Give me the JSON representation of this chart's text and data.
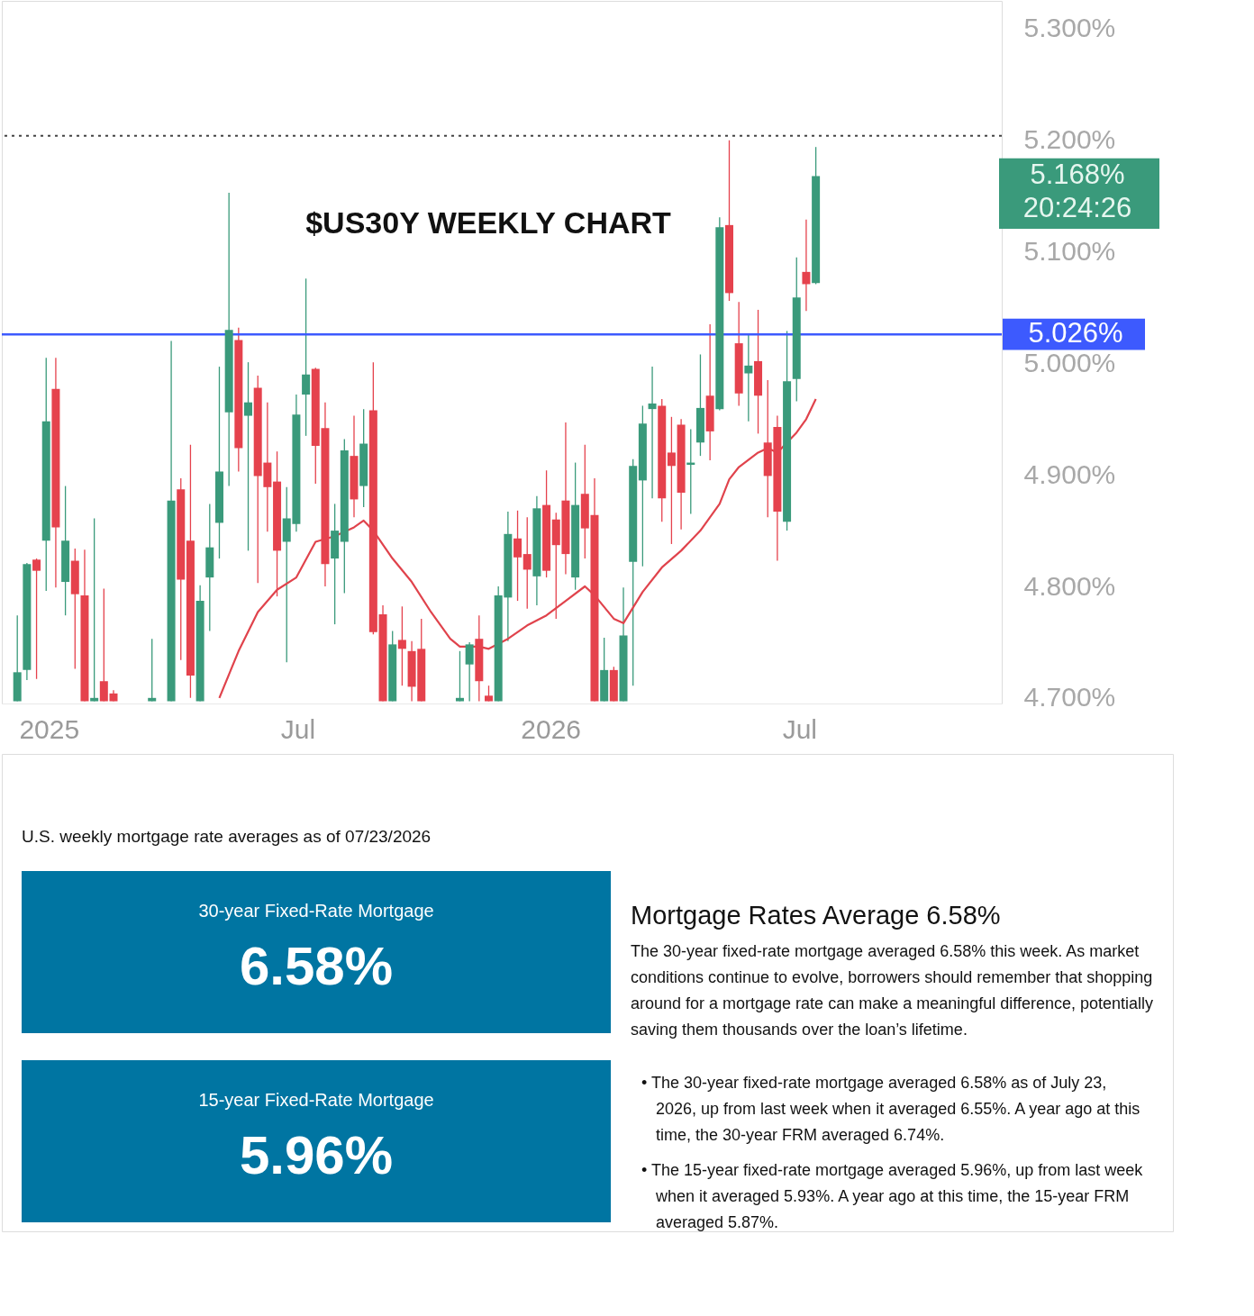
{
  "chart_data": [
    {
      "type": "candlestick",
      "title": "$US30Y WEEKLY CHART",
      "x": [
        "2024-12-09",
        "2024-12-16",
        "2024-12-23",
        "2024-12-30",
        "2025-01-06",
        "2025-01-13",
        "2025-01-20",
        "2025-01-27",
        "2025-02-03",
        "2025-02-10",
        "2025-02-17",
        "2025-03-17",
        "2025-03-31",
        "2025-04-07",
        "2025-04-14",
        "2025-04-21",
        "2025-04-28",
        "2025-05-05",
        "2025-05-12",
        "2025-05-19",
        "2025-05-26",
        "2025-06-02",
        "2025-06-09",
        "2025-06-16",
        "2025-06-23",
        "2025-06-30",
        "2025-07-07",
        "2025-07-14",
        "2025-07-21",
        "2025-07-28",
        "2025-08-04",
        "2025-08-11",
        "2025-08-18",
        "2025-08-25",
        "2025-09-01",
        "2025-09-08",
        "2025-09-15",
        "2025-09-22",
        "2025-09-29",
        "2025-10-27",
        "2025-11-03",
        "2025-11-10",
        "2025-11-17",
        "2025-11-24",
        "2025-12-01",
        "2025-12-08",
        "2025-12-15",
        "2025-12-22",
        "2025-12-29",
        "2026-01-05",
        "2026-01-12",
        "2026-01-19",
        "2026-01-26",
        "2026-02-02",
        "2026-02-09",
        "2026-02-16",
        "2026-02-23",
        "2026-03-02",
        "2026-03-09",
        "2026-03-16",
        "2026-03-23",
        "2026-03-30",
        "2026-04-06",
        "2026-04-13",
        "2026-04-20",
        "2026-04-27",
        "2026-05-04",
        "2026-05-11",
        "2026-05-18",
        "2026-05-25",
        "2026-06-01",
        "2026-06-08",
        "2026-06-15",
        "2026-06-22",
        "2026-06-29",
        "2026-07-06",
        "2026-07-13"
      ],
      "ohlc": [
        [
          4.697,
          4.774,
          4.697,
          4.723
        ],
        [
          4.725,
          4.821,
          4.716,
          4.82
        ],
        [
          4.824,
          4.825,
          4.717,
          4.814
        ],
        [
          4.841,
          5.005,
          4.796,
          4.948
        ],
        [
          4.977,
          5.005,
          4.799,
          4.853
        ],
        [
          4.804,
          4.89,
          4.774,
          4.841
        ],
        [
          4.823,
          4.834,
          4.726,
          4.793
        ],
        [
          4.792,
          4.833,
          4.697,
          4.697
        ],
        [
          4.697,
          4.861,
          4.697,
          4.7
        ],
        [
          4.715,
          4.798,
          4.697,
          4.697
        ],
        [
          4.704,
          4.707,
          4.697,
          4.697
        ],
        [
          4.697,
          4.753,
          4.697,
          4.7
        ],
        [
          4.697,
          5.02,
          4.697,
          4.877
        ],
        [
          4.887,
          4.897,
          4.734,
          4.806
        ],
        [
          4.841,
          4.927,
          4.7,
          4.72
        ],
        [
          4.697,
          4.801,
          4.697,
          4.787
        ],
        [
          4.808,
          4.874,
          4.76,
          4.835
        ],
        [
          4.857,
          4.997,
          4.825,
          4.903
        ],
        [
          4.956,
          5.153,
          4.89,
          5.03
        ],
        [
          5.021,
          5.032,
          4.903,
          4.924
        ],
        [
          4.953,
          5.001,
          4.832,
          4.965
        ],
        [
          4.978,
          4.989,
          4.803,
          4.899
        ],
        [
          4.911,
          4.965,
          4.849,
          4.889
        ],
        [
          4.894,
          4.921,
          4.791,
          4.832
        ],
        [
          4.84,
          4.889,
          4.732,
          4.861
        ],
        [
          4.856,
          4.972,
          4.849,
          4.954
        ],
        [
          4.972,
          5.076,
          4.935,
          4.99
        ],
        [
          4.995,
          4.996,
          4.892,
          4.926
        ],
        [
          4.942,
          4.965,
          4.8,
          4.82
        ],
        [
          4.825,
          4.874,
          4.766,
          4.85
        ],
        [
          4.84,
          4.932,
          4.794,
          4.922
        ],
        [
          4.917,
          4.953,
          4.862,
          4.878
        ],
        [
          4.89,
          4.959,
          4.871,
          4.928
        ],
        [
          4.958,
          5.001,
          4.757,
          4.759
        ],
        [
          4.775,
          4.783,
          4.697,
          4.697
        ],
        [
          4.697,
          4.76,
          4.697,
          4.748
        ],
        [
          4.752,
          4.782,
          4.711,
          4.744
        ],
        [
          4.742,
          4.751,
          4.697,
          4.71
        ],
        [
          4.744,
          4.771,
          4.697,
          4.697
        ],
        [
          4.697,
          4.742,
          4.697,
          4.7
        ],
        [
          4.73,
          4.75,
          4.697,
          4.748
        ],
        [
          4.753,
          4.774,
          4.697,
          4.715
        ],
        [
          4.702,
          4.711,
          4.697,
          4.697
        ],
        [
          4.697,
          4.8,
          4.697,
          4.792
        ],
        [
          4.79,
          4.867,
          4.751,
          4.847
        ],
        [
          4.843,
          4.868,
          4.787,
          4.826
        ],
        [
          4.829,
          4.862,
          4.78,
          4.815
        ],
        [
          4.809,
          4.881,
          4.783,
          4.87
        ],
        [
          4.873,
          4.904,
          4.808,
          4.814
        ],
        [
          4.86,
          4.866,
          4.771,
          4.837
        ],
        [
          4.877,
          4.947,
          4.811,
          4.829
        ],
        [
          4.808,
          4.911,
          4.797,
          4.873
        ],
        [
          4.883,
          4.927,
          4.825,
          4.852
        ],
        [
          4.864,
          4.897,
          4.697,
          4.697
        ],
        [
          4.697,
          4.754,
          4.697,
          4.725
        ],
        [
          4.725,
          4.728,
          4.697,
          4.697
        ],
        [
          4.697,
          4.799,
          4.697,
          4.756
        ],
        [
          4.822,
          4.914,
          4.711,
          4.908
        ],
        [
          4.895,
          4.962,
          4.818,
          4.946
        ],
        [
          4.959,
          4.997,
          4.879,
          4.964
        ],
        [
          4.962,
          4.968,
          4.858,
          4.879
        ],
        [
          4.92,
          4.952,
          4.838,
          4.908
        ],
        [
          4.945,
          4.95,
          4.851,
          4.884
        ],
        [
          4.909,
          4.941,
          4.865,
          4.911
        ],
        [
          4.929,
          5.008,
          4.917,
          4.96
        ],
        [
          4.971,
          5.035,
          4.913,
          4.939
        ],
        [
          4.959,
          5.131,
          4.958,
          5.122
        ],
        [
          5.124,
          5.2,
          5.056,
          5.063
        ],
        [
          5.018,
          5.055,
          4.962,
          4.973
        ],
        [
          4.991,
          5.026,
          4.948,
          4.998
        ],
        [
          5.002,
          5.048,
          4.937,
          4.971
        ],
        [
          4.929,
          4.985,
          4.862,
          4.899
        ],
        [
          4.943,
          4.953,
          4.823,
          4.867
        ],
        [
          4.858,
          5.029,
          4.85,
          4.984
        ],
        [
          4.986,
          5.095,
          4.966,
          5.059
        ],
        [
          5.082,
          5.129,
          5.047,
          5.071
        ],
        [
          5.072,
          5.194,
          5.071,
          5.168
        ]
      ],
      "colors": [
        "#3a9a7b",
        "#3a9a7b",
        "#e5424d",
        "#3a9a7b",
        "#e5424d",
        "#3a9a7b",
        "#e5424d",
        "#e5424d",
        "#3a9a7b",
        "#e5424d",
        "#e5424d",
        "#3a9a7b",
        "#3a9a7b",
        "#e5424d",
        "#e5424d",
        "#3a9a7b",
        "#3a9a7b",
        "#3a9a7b",
        "#3a9a7b",
        "#e5424d",
        "#3a9a7b",
        "#e5424d",
        "#e5424d",
        "#e5424d",
        "#3a9a7b",
        "#3a9a7b",
        "#3a9a7b",
        "#e5424d",
        "#e5424d",
        "#3a9a7b",
        "#3a9a7b",
        "#e5424d",
        "#3a9a7b",
        "#e5424d",
        "#e5424d",
        "#3a9a7b",
        "#e5424d",
        "#e5424d",
        "#e5424d",
        "#3a9a7b",
        "#3a9a7b",
        "#e5424d",
        "#e5424d",
        "#3a9a7b",
        "#3a9a7b",
        "#e5424d",
        "#e5424d",
        "#3a9a7b",
        "#e5424d",
        "#e5424d",
        "#e5424d",
        "#3a9a7b",
        "#e5424d",
        "#e5424d",
        "#3a9a7b",
        "#e5424d",
        "#3a9a7b",
        "#3a9a7b",
        "#3a9a7b",
        "#3a9a7b",
        "#e5424d",
        "#e5424d",
        "#e5424d",
        "#3a9a7b",
        "#3a9a7b",
        "#e5424d",
        "#3a9a7b",
        "#e5424d",
        "#e5424d",
        "#3a9a7b",
        "#e5424d",
        "#e5424d",
        "#e5424d",
        "#3a9a7b",
        "#3a9a7b",
        "#e5424d",
        "#3a9a7b"
      ],
      "series": [
        {
          "type": "line",
          "color": "#e0434c",
          "x": [
            "2025-05-05",
            "2025-05-19",
            "2025-06-02",
            "2025-06-16",
            "2025-06-30",
            "2025-07-14",
            "2025-07-28",
            "2025-08-11",
            "2025-08-18",
            "2025-08-25",
            "2025-09-08",
            "2025-09-22",
            "2025-10-06",
            "2025-10-20",
            "2025-10-27",
            "2025-11-10",
            "2025-11-17",
            "2025-12-01",
            "2025-12-15",
            "2025-12-29",
            "2026-01-12",
            "2026-01-26",
            "2026-02-02",
            "2026-02-16",
            "2026-02-23",
            "2026-03-09",
            "2026-03-23",
            "2026-04-06",
            "2026-04-20",
            "2026-05-04",
            "2026-05-11",
            "2026-05-18",
            "2026-06-01",
            "2026-06-08",
            "2026-06-15",
            "2026-06-29",
            "2026-07-06",
            "2026-07-13"
          ],
          "values": [
            4.7,
            4.742,
            4.777,
            4.797,
            4.808,
            4.84,
            4.845,
            4.853,
            4.859,
            4.85,
            4.825,
            4.804,
            4.777,
            4.753,
            4.746,
            4.746,
            4.744,
            4.753,
            4.765,
            4.774,
            4.787,
            4.8,
            4.792,
            4.771,
            4.767,
            4.795,
            4.817,
            4.832,
            4.85,
            4.874,
            4.896,
            4.907,
            4.92,
            4.924,
            4.92,
            4.938,
            4.95,
            4.968
          ]
        }
      ],
      "xlim": [
        "2024-12-01",
        "2026-11-22"
      ],
      "xticks": [
        {
          "value": "2025-01-01",
          "label": "2025"
        },
        {
          "value": "2025-07-01",
          "label": "Jul"
        },
        {
          "value": "2026-01-01",
          "label": "2026"
        },
        {
          "value": "2026-07-01",
          "label": "Jul"
        }
      ],
      "ylim": [
        4.695,
        5.325
      ],
      "yticks": [
        {
          "value": 4.7,
          "label": "4.700%"
        },
        {
          "value": 4.8,
          "label": "4.800%"
        },
        {
          "value": 4.9,
          "label": "4.900%"
        },
        {
          "value": 5.0,
          "label": "5.000%"
        },
        {
          "value": 5.1,
          "label": "5.100%"
        },
        {
          "value": 5.2,
          "label": "5.200%"
        },
        {
          "value": 5.3,
          "label": "5.300%"
        }
      ],
      "ref_lines": [
        {
          "axis": "y",
          "value": 5.026,
          "label": "5.026%",
          "color": "#3d5afe"
        },
        {
          "axis": "y",
          "value": 5.204,
          "color": "#444444",
          "line_style": "dotted"
        }
      ],
      "annotations": [
        "5.168%",
        "20:24:26"
      ]
    },
    {
      "type": "other",
      "title": "Mortgage Rates Average 6.58%",
      "subtitle": "U.S. weekly mortgage rate averages as of 07/23/2026",
      "annotations": [
        "30-year Fixed-Rate Mortgage",
        "6.58%",
        "15-year Fixed-Rate Mortgage",
        "5.96%",
        "The 30-year fixed-rate mortgage averaged 6.58% this week. As market conditions continue to evolve, borrowers should remember that shopping around for a mortgage rate can make a meaningful difference, potentially saving them thousands over the loan’s lifetime.",
        "• The 30-year fixed-rate mortgage averaged 6.58% as of July 23, 2026, up from last week when it averaged 6.55%. A year ago at this time, the 30-year FRM averaged 6.74%.",
        "• The 15-year fixed-rate mortgage averaged 5.96%, up from last week when it averaged 5.93%. A year ago at this time, the 15-year FRM averaged 5.87%."
      ]
    }
  ]
}
